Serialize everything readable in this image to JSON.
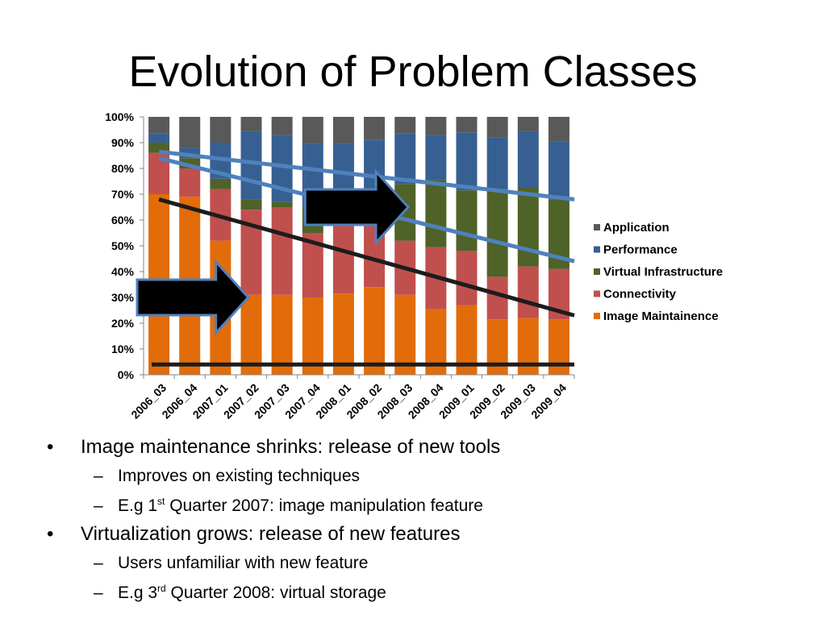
{
  "slide": {
    "title": "Evolution of Problem Classes"
  },
  "chart_data": {
    "type": "stacked-bar-100",
    "categories": [
      "2006_03",
      "2006_04",
      "2007_01",
      "2007_02",
      "2007_03",
      "2007_04",
      "2008_01",
      "2008_02",
      "2008_03",
      "2008_04",
      "2009_01",
      "2009_02",
      "2009_03",
      "2009_04"
    ],
    "series": [
      {
        "name": "Image Maintainence",
        "color": "#E36C0A",
        "values": [
          70,
          69,
          52,
          31,
          31,
          30,
          31.5,
          34,
          31,
          25.5,
          27,
          21.5,
          22,
          21.5
        ]
      },
      {
        "name": "Connectivity",
        "color": "#C0504D",
        "values": [
          16,
          11,
          20,
          33,
          34,
          25,
          34.5,
          24,
          21,
          24,
          21,
          16.5,
          20,
          19.5
        ]
      },
      {
        "name": "Virtual Infrastructure",
        "color": "#4F6228",
        "values": [
          4,
          4,
          4,
          4,
          2,
          10,
          4.5,
          9,
          22,
          26,
          23.5,
          34,
          30.5,
          27
        ]
      },
      {
        "name": "Performance",
        "color": "#376092",
        "values": [
          3.5,
          4,
          14,
          26.5,
          26,
          24.5,
          19,
          24,
          19.5,
          17.5,
          22.5,
          20,
          22,
          22.5
        ]
      },
      {
        "name": "Application",
        "color": "#595959",
        "values": [
          6.5,
          12,
          10,
          5.5,
          7,
          10.5,
          10.5,
          9,
          6.5,
          7,
          6,
          8,
          5.5,
          9.5
        ]
      }
    ],
    "legend_order": [
      "Application",
      "Performance",
      "Virtual Infrastructure",
      "Connectivity",
      "Image Maintainence"
    ],
    "y_ticks": [
      "0%",
      "10%",
      "20%",
      "30%",
      "40%",
      "50%",
      "60%",
      "70%",
      "80%",
      "90%",
      "100%"
    ],
    "ylim": [
      0,
      100
    ],
    "legend_position": "right",
    "annotations": {
      "trend_lines": [
        {
          "name": "image-maintenance-trend",
          "color": "#1C1C1C",
          "from": [
            0,
            68
          ],
          "to": [
            13.5,
            23
          ]
        },
        {
          "name": "virtualization-trend-upper",
          "color": "#4F81BD",
          "from": [
            0,
            86.5
          ],
          "to": [
            13.5,
            68
          ]
        },
        {
          "name": "virtualization-trend-lower",
          "color": "#4F81BD",
          "from": [
            0,
            84
          ],
          "to": [
            13.5,
            44
          ]
        },
        {
          "name": "baseline-bar",
          "color": "#1C1C1C",
          "from": [
            -0.5,
            4
          ],
          "to": [
            13.5,
            4
          ]
        }
      ],
      "arrows": [
        {
          "name": "arrow-image-maintenance",
          "x_from": -0.5,
          "x_to": 2.9,
          "y": 30
        },
        {
          "name": "arrow-virtualization",
          "x_from": 4.75,
          "x_to": 8.1,
          "y": 65
        }
      ]
    }
  },
  "bullets": [
    {
      "text": "Image maintenance shrinks: release of new tools",
      "sub": [
        {
          "text": "Improves on existing techniques"
        },
        {
          "pre": "E.g 1",
          "sup": "st",
          "post": " Quarter 2007: image manipulation feature"
        }
      ]
    },
    {
      "text": "Virtualization grows: release of new features",
      "sub": [
        {
          "text": "Users unfamiliar with new feature"
        },
        {
          "pre": "E.g 3",
          "sup": "rd",
          "post": " Quarter 2008: virtual storage"
        }
      ]
    }
  ]
}
